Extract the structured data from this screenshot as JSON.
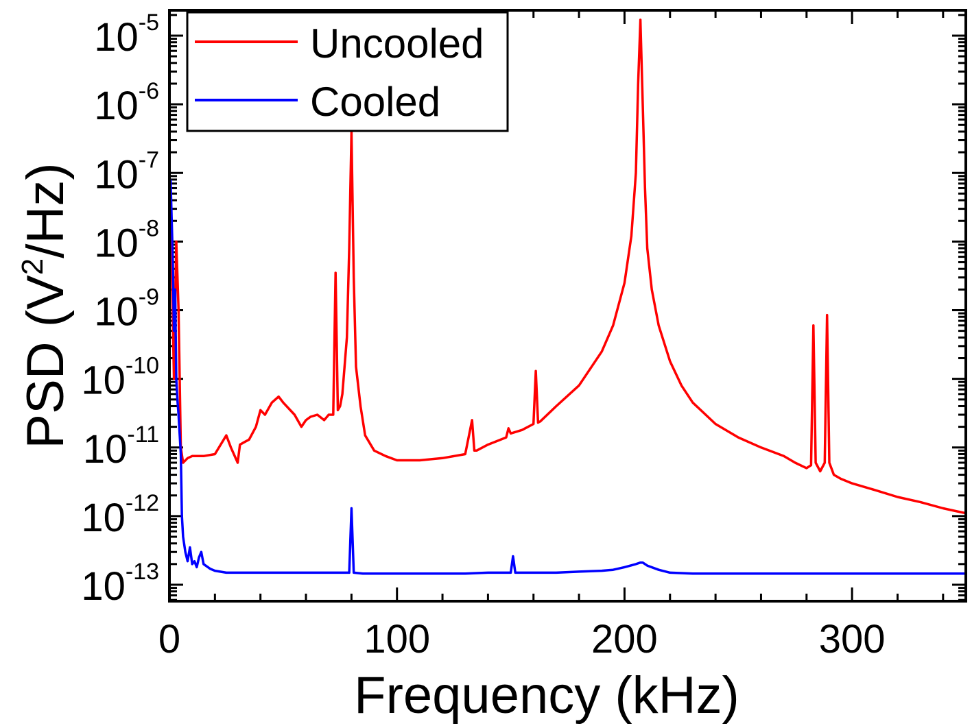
{
  "chart_data": {
    "type": "line",
    "title": "",
    "xlabel": "Frequency (kHz)",
    "ylabel_main": "PSD (V",
    "ylabel_sup": "2",
    "ylabel_tail": "/Hz)",
    "xlim": [
      0,
      350
    ],
    "ylim": [
      1e-13,
      2e-05
    ],
    "yscale": "log",
    "grid": false,
    "legend_position": "top-left",
    "x_ticks": [
      {
        "value": 0,
        "label": "0"
      },
      {
        "value": 100,
        "label": "100"
      },
      {
        "value": 200,
        "label": "200"
      },
      {
        "value": 300,
        "label": "300"
      }
    ],
    "y_ticks": [
      {
        "value": 1e-13,
        "base": "10",
        "exp": "-13"
      },
      {
        "value": 1e-12,
        "base": "10",
        "exp": "-12"
      },
      {
        "value": 1e-11,
        "base": "10",
        "exp": "-11"
      },
      {
        "value": 1e-10,
        "base": "10",
        "exp": "-10"
      },
      {
        "value": 1e-09,
        "base": "10",
        "exp": "-9"
      },
      {
        "value": 1e-08,
        "base": "10",
        "exp": "-8"
      },
      {
        "value": 1e-07,
        "base": "10",
        "exp": "-7"
      },
      {
        "value": 1e-06,
        "base": "10",
        "exp": "-6"
      },
      {
        "value": 1e-05,
        "base": "10",
        "exp": "-5"
      }
    ],
    "series": [
      {
        "name": "Uncooled",
        "color": "#ff0000",
        "x": [
          0.5,
          1,
          2,
          3,
          4,
          5,
          6,
          8,
          10,
          15,
          20,
          25,
          27,
          30,
          31,
          33,
          35,
          38,
          40,
          42,
          45,
          48,
          50,
          55,
          58,
          60,
          62,
          65,
          68,
          70,
          72,
          73,
          74,
          75,
          76,
          78,
          79,
          80,
          81,
          82,
          84,
          86,
          90,
          95,
          100,
          110,
          120,
          130,
          133,
          134,
          135,
          140,
          148,
          149,
          150,
          155,
          160,
          161,
          162,
          163,
          170,
          180,
          190,
          195,
          200,
          203,
          205,
          206,
          207,
          208,
          209,
          210,
          212,
          215,
          220,
          225,
          230,
          240,
          250,
          260,
          270,
          275,
          280,
          282,
          283,
          284,
          286,
          288,
          289,
          290,
          292,
          295,
          300,
          310,
          320,
          330,
          340,
          350
        ],
        "y": [
          3e-08,
          5e-09,
          1e-10,
          1e-08,
          1e-09,
          1e-11,
          6e-12,
          7e-12,
          7.5e-12,
          7.5e-12,
          8e-12,
          1.5e-11,
          1e-11,
          6e-12,
          1.1e-11,
          1.2e-11,
          1.3e-11,
          2e-11,
          3.5e-11,
          3e-11,
          4.5e-11,
          5.5e-11,
          4.5e-11,
          3e-11,
          2e-11,
          2.5e-11,
          2.8e-11,
          3e-11,
          2.5e-11,
          3e-11,
          3e-11,
          3.5e-09,
          3.5e-11,
          4e-11,
          6e-11,
          4e-10,
          8e-09,
          4e-07,
          3e-09,
          1.5e-10,
          4e-11,
          1.5e-11,
          9e-12,
          7.5e-12,
          6.5e-12,
          6.5e-12,
          7e-12,
          8e-12,
          2.5e-11,
          9e-12,
          9e-12,
          1.1e-11,
          1.4e-11,
          1.9e-11,
          1.6e-11,
          1.8e-11,
          2.2e-11,
          1.3e-10,
          2.3e-11,
          2.4e-11,
          4e-11,
          8e-11,
          2.5e-10,
          6e-10,
          2.5e-09,
          1.2e-08,
          1e-07,
          2e-06,
          1.7e-05,
          1e-06,
          6e-08,
          8e-09,
          2e-09,
          6e-10,
          1.8e-10,
          8e-11,
          4.5e-11,
          2.2e-11,
          1.4e-11,
          1e-11,
          7.5e-12,
          6e-12,
          5e-12,
          5.5e-12,
          6e-10,
          6e-12,
          4.5e-12,
          6e-12,
          8.5e-10,
          6e-12,
          4e-12,
          3.5e-12,
          3e-12,
          2.4e-12,
          1.9e-12,
          1.6e-12,
          1.3e-12,
          1.1e-12
        ]
      },
      {
        "name": "Cooled",
        "color": "#0000ff",
        "x": [
          0.5,
          1,
          1.5,
          2,
          2.5,
          3,
          3.5,
          4,
          5,
          5.5,
          6,
          7,
          8,
          9,
          10,
          11,
          12,
          13,
          14,
          15,
          18,
          20,
          25,
          30,
          40,
          50,
          60,
          70,
          75,
          79,
          80,
          81,
          85,
          90,
          100,
          110,
          120,
          130,
          140,
          150,
          151,
          152,
          155,
          160,
          170,
          180,
          190,
          195,
          200,
          205,
          207,
          208,
          210,
          215,
          220,
          230,
          240,
          250,
          260,
          280,
          300,
          320,
          340,
          350
        ],
        "y": [
          8e-08,
          2e-08,
          5e-09,
          5e-10,
          2e-09,
          1e-10,
          5e-11,
          3e-11,
          8e-12,
          1e-12,
          5e-13,
          3e-13,
          2.2e-13,
          3.5e-13,
          2e-13,
          2.2e-13,
          1.8e-13,
          2.5e-13,
          3e-13,
          2e-13,
          1.7e-13,
          1.6e-13,
          1.5e-13,
          1.5e-13,
          1.5e-13,
          1.5e-13,
          1.5e-13,
          1.5e-13,
          1.5e-13,
          1.5e-13,
          1.3e-12,
          1.5e-13,
          1.45e-13,
          1.45e-13,
          1.45e-13,
          1.45e-13,
          1.45e-13,
          1.45e-13,
          1.5e-13,
          1.5e-13,
          2.6e-13,
          1.5e-13,
          1.5e-13,
          1.5e-13,
          1.5e-13,
          1.55e-13,
          1.6e-13,
          1.65e-13,
          1.8e-13,
          2e-13,
          2.1e-13,
          2.1e-13,
          1.9e-13,
          1.65e-13,
          1.5e-13,
          1.45e-13,
          1.45e-13,
          1.45e-13,
          1.45e-13,
          1.45e-13,
          1.45e-13,
          1.45e-13,
          1.45e-13,
          1.45e-13
        ]
      }
    ]
  }
}
